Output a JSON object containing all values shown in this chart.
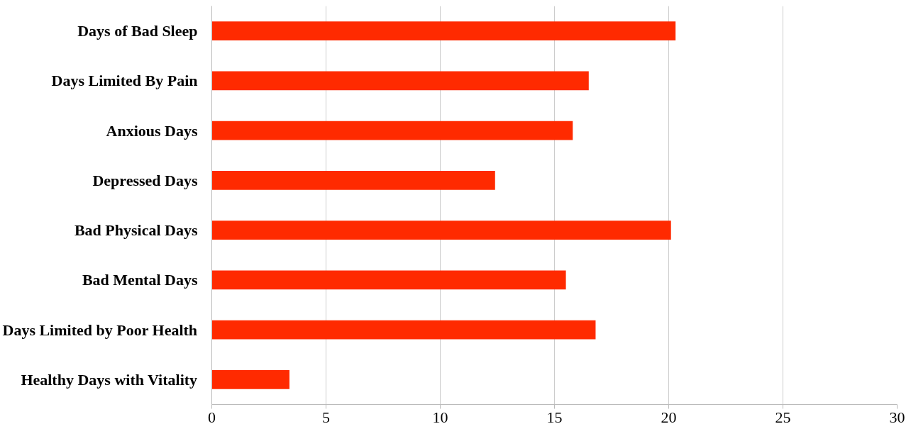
{
  "chart_data": {
    "type": "bar",
    "orientation": "horizontal",
    "categories": [
      "Days of Bad Sleep",
      "Days Limited By Pain",
      "Anxious Days",
      "Depressed Days",
      "Bad Physical Days",
      "Bad Mental Days",
      "Days Limited by Poor Health",
      "Healthy Days with Vitality"
    ],
    "values": [
      20.3,
      16.5,
      15.8,
      12.4,
      20.1,
      15.5,
      16.8,
      3.4
    ],
    "color": "#ff2a00",
    "xlim": [
      0,
      30
    ],
    "xticks": [
      0,
      5,
      10,
      15,
      20,
      25,
      30
    ],
    "grid": "x"
  }
}
